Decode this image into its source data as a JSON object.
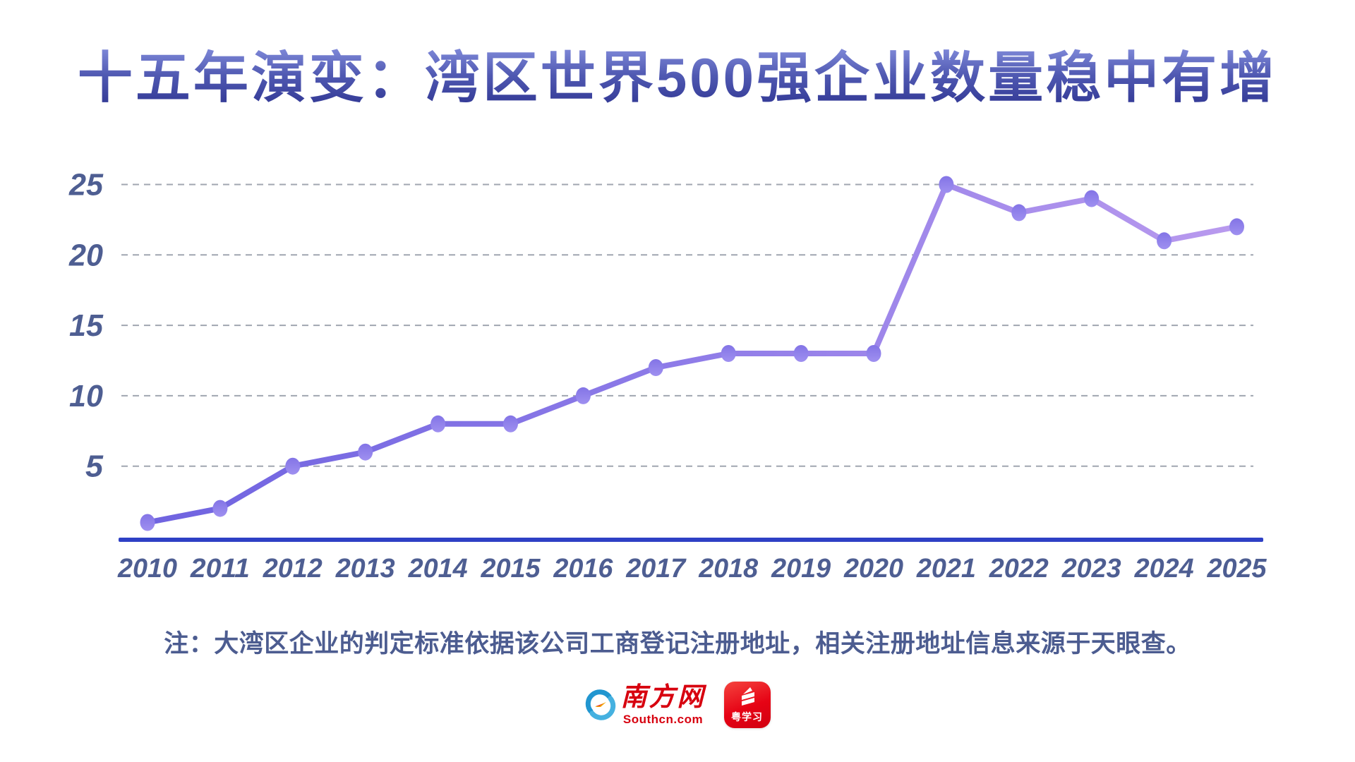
{
  "title": "十五年演变：湾区世界500强企业数量稳中有增",
  "note": "注：大湾区企业的判定标准依据该公司工商登记注册地址，相关注册地址信息来源于天眼查。",
  "chart_data": {
    "type": "line",
    "title": "十五年演变：湾区世界500强企业数量稳中有增",
    "categories": [
      "2010",
      "2011",
      "2012",
      "2013",
      "2014",
      "2015",
      "2016",
      "2017",
      "2018",
      "2019",
      "2020",
      "2021",
      "2022",
      "2023",
      "2024",
      "2025"
    ],
    "values": [
      1,
      2,
      5,
      6,
      8,
      8,
      10,
      12,
      13,
      13,
      13,
      25,
      23,
      24,
      21,
      22
    ],
    "series_name": "湾区世界500强企业数量",
    "xlabel": "",
    "ylabel": "",
    "yticks": [
      5,
      10,
      15,
      20,
      25
    ],
    "ylim": [
      0,
      27.5
    ],
    "grid": "horizontal-dashed",
    "legend": "none",
    "marker": "ellipse-dot"
  },
  "colors": {
    "title_gradient_top": "#7f89d9",
    "title_gradient_bottom": "#353c98",
    "line_gradient_start": "#6f63e0",
    "line_gradient_mid": "#8f7ce8",
    "line_gradient_end": "#b99aee",
    "dot_gradient_top": "#8374e6",
    "dot_gradient_bottom": "#9f90f0",
    "axis_line": "#2e40c5",
    "gridline": "#a0a6b0",
    "tick_label": "#4e5e92",
    "note_text": "#4c5c90",
    "logo_red": "#d7000f",
    "southcn_blue": "#2196d0",
    "southcn_blue_light": "#45b1e0",
    "southcn_yellow": "#f5a800",
    "background": "#ffffff"
  },
  "footer": {
    "southcn": {
      "icon": "southcn-swirl-icon",
      "name": "南方网",
      "domain": "Southcn.com"
    },
    "yuexuexi": {
      "icon": "yuexuexi-app-icon",
      "label": "粤学习"
    }
  }
}
